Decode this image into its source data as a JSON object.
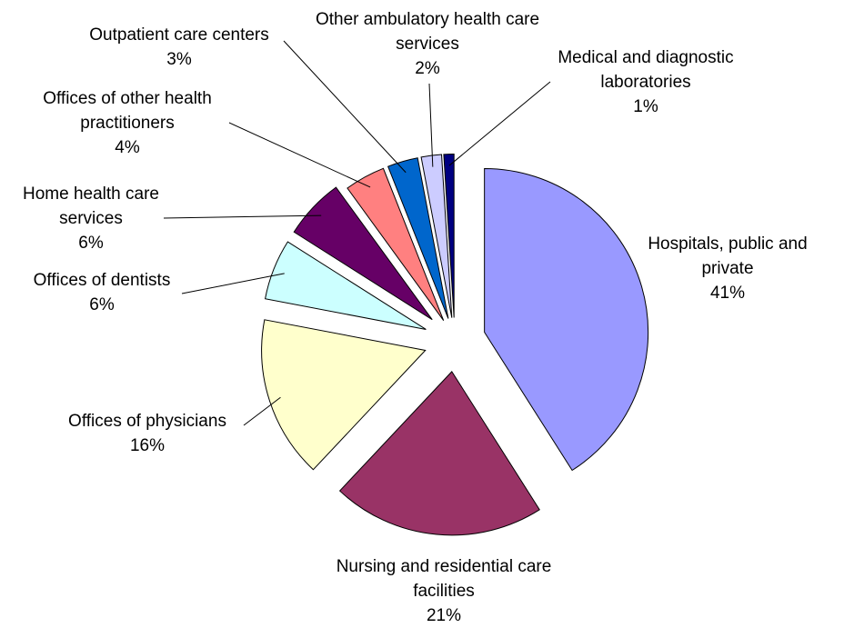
{
  "chart_data": {
    "type": "pie",
    "categories": [
      "Hospitals, public and private",
      "Nursing and residential care facilities",
      "Offices of physicians",
      "Offices of dentists",
      "Home health care services",
      "Offices of other health practitioners",
      "Outpatient care centers",
      "Other ambulatory health care services",
      "Medical and diagnostic laboratories"
    ],
    "values": [
      41,
      21,
      16,
      6,
      6,
      4,
      3,
      2,
      1
    ],
    "value_labels": [
      "41%",
      "21%",
      "16%",
      "6%",
      "6%",
      "4%",
      "3%",
      "2%",
      "1%"
    ],
    "colors": [
      "#9999ff",
      "#993366",
      "#ffffcc",
      "#ccffff",
      "#660066",
      "#ff8080",
      "#0066cc",
      "#ccccff",
      "#000080"
    ]
  }
}
